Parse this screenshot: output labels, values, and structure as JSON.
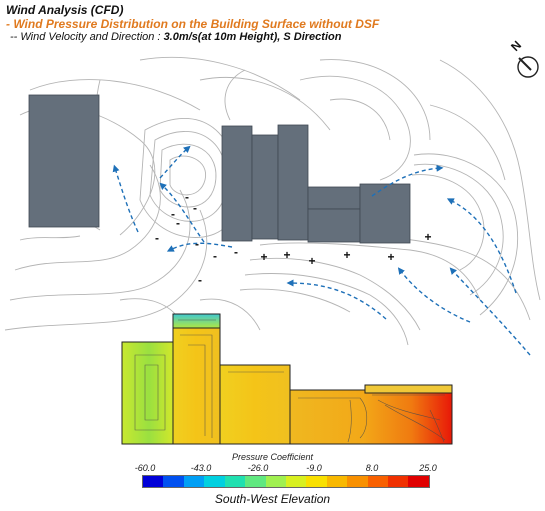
{
  "header": {
    "title": "Wind Analysis (CFD)",
    "subtitle": "- Wind Pressure Distribution on the Building Surface without DSF",
    "condition_prefix": "-- Wind Velocity and Direction : ",
    "condition_value": "3.0m/s(at 10m Height), S Direction"
  },
  "compass": {
    "label": "N"
  },
  "plan": {
    "negative_sign": "-",
    "positive_sign": "+"
  },
  "colorbar": {
    "title": "Pressure Coefficient",
    "ticks": [
      "-60.0",
      "-43.0",
      "-26.0",
      "-9.0",
      "8.0",
      "25.0"
    ],
    "colors": [
      "#0000d8",
      "#0050f0",
      "#009ff5",
      "#00d0e0",
      "#20e0b0",
      "#60e880",
      "#a0f050",
      "#d8f020",
      "#f8e000",
      "#f8b800",
      "#f89000",
      "#f86000",
      "#f03000",
      "#e00000"
    ]
  },
  "elevation_caption": "South-West Elevation",
  "colors": {
    "building": "#646f7b",
    "arrow": "#1e70b8",
    "contour": "#b4b4b4"
  }
}
